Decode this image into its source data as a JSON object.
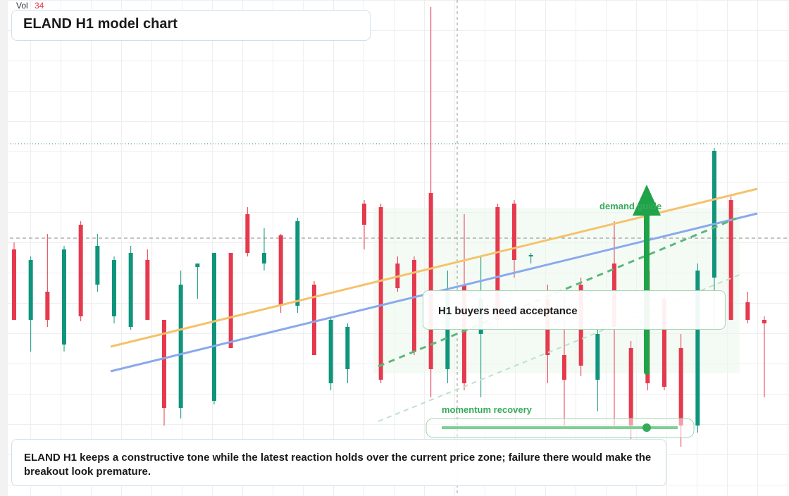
{
  "chart_data": {
    "type": "candlestick",
    "title": "ELAND H1 model chart",
    "volume_label": "Vol",
    "volume": 34,
    "ylim": [
      0,
      704
    ],
    "up_color": "#10957c",
    "down_color": "#e53a4e",
    "candles": [
      {
        "o": 350,
        "h": 360,
        "l": 250,
        "c": 250
      },
      {
        "o": 250,
        "h": 340,
        "l": 205,
        "c": 335
      },
      {
        "o": 290,
        "h": 372,
        "l": 240,
        "c": 250
      },
      {
        "o": 215,
        "h": 355,
        "l": 205,
        "c": 350
      },
      {
        "o": 385,
        "h": 390,
        "l": 248,
        "c": 255
      },
      {
        "o": 300,
        "h": 372,
        "l": 290,
        "c": 355
      },
      {
        "o": 255,
        "h": 340,
        "l": 245,
        "c": 335
      },
      {
        "o": 240,
        "h": 355,
        "l": 236,
        "c": 345
      },
      {
        "o": 335,
        "h": 350,
        "l": 250,
        "c": 250
      },
      {
        "o": 250,
        "h": 250,
        "l": 100,
        "c": 125
      },
      {
        "o": 125,
        "h": 320,
        "l": 110,
        "c": 300
      },
      {
        "o": 325,
        "h": 330,
        "l": 280,
        "c": 330
      },
      {
        "o": 135,
        "h": 345,
        "l": 130,
        "c": 345
      },
      {
        "o": 345,
        "h": 345,
        "l": 210,
        "c": 210
      },
      {
        "o": 400,
        "h": 410,
        "l": 340,
        "c": 345
      },
      {
        "o": 330,
        "h": 380,
        "l": 320,
        "c": 345
      },
      {
        "o": 370,
        "h": 372,
        "l": 260,
        "c": 270
      },
      {
        "o": 270,
        "h": 395,
        "l": 260,
        "c": 390
      },
      {
        "o": 300,
        "h": 305,
        "l": 200,
        "c": 200
      },
      {
        "o": 160,
        "h": 255,
        "l": 150,
        "c": 250
      },
      {
        "o": 180,
        "h": 245,
        "l": 160,
        "c": 240
      },
      {
        "o": 415,
        "h": 420,
        "l": 350,
        "c": 385
      },
      {
        "o": 410,
        "h": 415,
        "l": 160,
        "c": 165
      },
      {
        "o": 330,
        "h": 340,
        "l": 290,
        "c": 295
      },
      {
        "o": 335,
        "h": 340,
        "l": 200,
        "c": 205
      },
      {
        "o": 430,
        "h": 694,
        "l": 140,
        "c": 180
      },
      {
        "o": 180,
        "h": 320,
        "l": 160,
        "c": 290
      },
      {
        "o": 300,
        "h": 400,
        "l": 150,
        "c": 160
      },
      {
        "o": 230,
        "h": 340,
        "l": 140,
        "c": 280
      },
      {
        "o": 410,
        "h": 415,
        "l": 240,
        "c": 250
      },
      {
        "o": 415,
        "h": 420,
        "l": 310,
        "c": 335
      },
      {
        "o": 340,
        "h": 345,
        "l": 330,
        "c": 342
      },
      {
        "o": 280,
        "h": 300,
        "l": 160,
        "c": 200
      },
      {
        "o": 200,
        "h": 290,
        "l": 100,
        "c": 165
      },
      {
        "o": 300,
        "h": 310,
        "l": 170,
        "c": 185
      },
      {
        "o": 165,
        "h": 240,
        "l": 120,
        "c": 230
      },
      {
        "o": 330,
        "h": 390,
        "l": 100,
        "c": 240
      },
      {
        "o": 210,
        "h": 220,
        "l": 80,
        "c": 100
      },
      {
        "o": 320,
        "h": 330,
        "l": 150,
        "c": 160
      },
      {
        "o": 280,
        "h": 285,
        "l": 150,
        "c": 155
      },
      {
        "o": 210,
        "h": 230,
        "l": 70,
        "c": 100
      },
      {
        "o": 100,
        "h": 330,
        "l": 90,
        "c": 320
      },
      {
        "o": 310,
        "h": 494,
        "l": 240,
        "c": 490
      },
      {
        "o": 420,
        "h": 425,
        "l": 250,
        "c": 250
      },
      {
        "o": 275,
        "h": 290,
        "l": 245,
        "c": 250
      },
      {
        "o": 250,
        "h": 255,
        "l": 140,
        "c": 245
      }
    ],
    "annotations": [
      "demand guide",
      "H1 buyers need acceptance",
      "momentum recovery"
    ],
    "caption": "ELAND H1 keeps a constructive tone while the latest reaction holds over the current price zone; failure there would make the breakout look premature."
  }
}
